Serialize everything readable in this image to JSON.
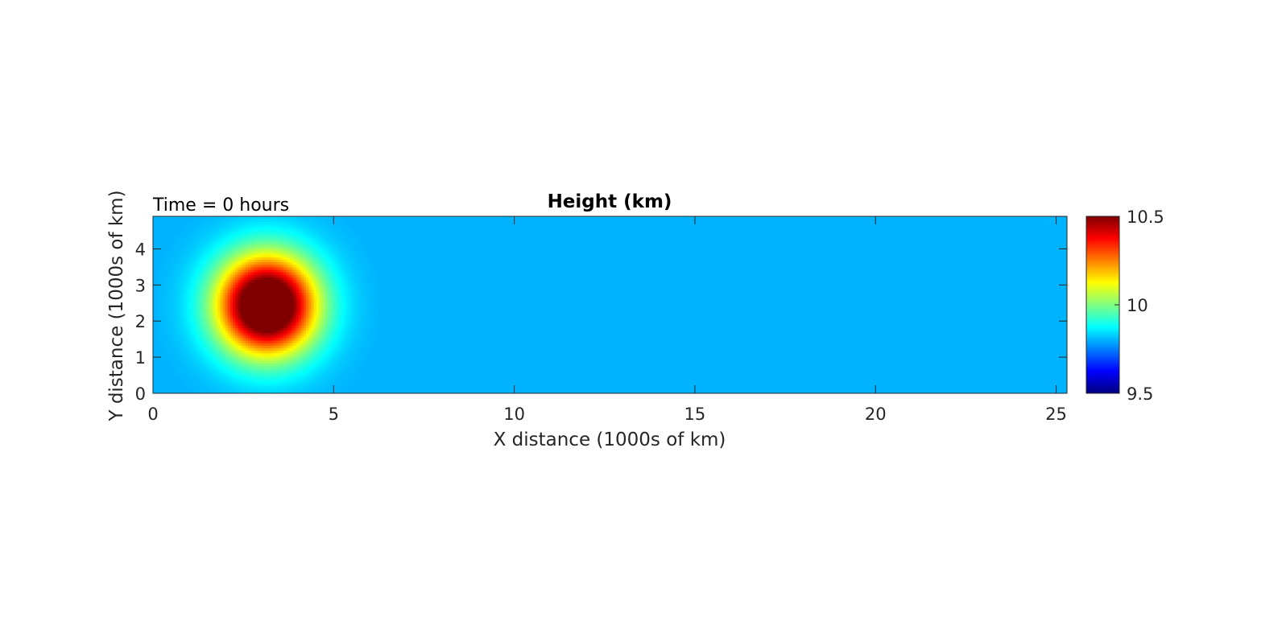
{
  "chart_data": {
    "type": "heatmap",
    "title": "Height (km)",
    "annotation": "Time = 0 hours",
    "xlabel": "X distance (1000s of km)",
    "ylabel": "Y distance (1000s of km)",
    "xlim": [
      0,
      25.3
    ],
    "ylim": [
      0,
      4.9
    ],
    "x_ticks": [
      0,
      5,
      10,
      15,
      20,
      25
    ],
    "x_tick_labels": [
      "0",
      "5",
      "10",
      "15",
      "20",
      "25"
    ],
    "y_ticks": [
      0,
      1,
      2,
      3,
      4
    ],
    "y_tick_labels": [
      "0",
      "1",
      "2",
      "3",
      "4"
    ],
    "colormap": "jet",
    "clim": [
      9.5,
      10.5
    ],
    "colorbar": {
      "ticks": [
        9.5,
        10,
        10.5
      ],
      "tick_labels": [
        "9.5",
        "10",
        "10.5"
      ]
    },
    "field": {
      "background_value": 9.8,
      "feature": "gaussian bump",
      "center_x": 3.15,
      "center_y": 2.45,
      "peak_value": 10.5,
      "sigma": 0.95
    },
    "grid": false
  }
}
